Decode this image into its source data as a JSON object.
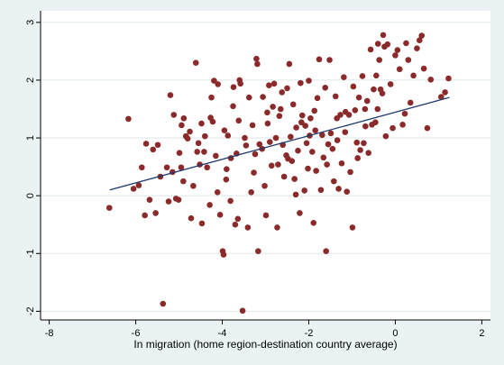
{
  "chart_data": {
    "type": "scatter",
    "title": "",
    "xlabel": "In migration (home region-destination country average)",
    "ylabel": "",
    "xlim": [
      -8.2,
      2.2
    ],
    "ylim": [
      -2.15,
      3.2
    ],
    "xticks": [
      -8,
      -6,
      -4,
      -2,
      0,
      2
    ],
    "yticks": [
      -2,
      -1,
      0,
      1,
      2,
      3
    ],
    "xtick_labels": [
      "-8",
      "-6",
      "-4",
      "-2",
      "0",
      "2"
    ],
    "ytick_labels": [
      "-2",
      "-1",
      "0",
      "1",
      "2",
      "3"
    ],
    "grid": "horizontal",
    "colors": {
      "marker": "#8b2a2a",
      "fit_line": "#1f3a6e",
      "background": "#eaf2f3",
      "plot_bg": "#ffffff"
    },
    "fit_line": {
      "x": [
        -6.6,
        1.25
      ],
      "y": [
        0.1,
        1.7
      ]
    },
    "points": [
      {
        "x": -6.61,
        "y": -0.21
      },
      {
        "x": -6.17,
        "y": 1.33
      },
      {
        "x": -6.05,
        "y": 0.12
      },
      {
        "x": -5.93,
        "y": 0.18
      },
      {
        "x": -5.86,
        "y": 0.49
      },
      {
        "x": -5.76,
        "y": 0.9
      },
      {
        "x": -5.79,
        "y": -0.34
      },
      {
        "x": -5.68,
        "y": -0.07
      },
      {
        "x": -5.54,
        "y": -0.3
      },
      {
        "x": -5.49,
        "y": 0.88
      },
      {
        "x": -5.43,
        "y": 0.33
      },
      {
        "x": -5.37,
        "y": -1.87
      },
      {
        "x": -5.28,
        "y": 0.49
      },
      {
        "x": -5.2,
        "y": 1.74
      },
      {
        "x": -5.24,
        "y": -0.1
      },
      {
        "x": -5.15,
        "y": 0.41
      },
      {
        "x": -5.12,
        "y": 1.4
      },
      {
        "x": -5.07,
        "y": -0.05
      },
      {
        "x": -5.01,
        "y": -0.07
      },
      {
        "x": -4.99,
        "y": 0.74
      },
      {
        "x": -4.94,
        "y": 1.22
      },
      {
        "x": -4.95,
        "y": 0.49
      },
      {
        "x": -4.89,
        "y": 1.34
      },
      {
        "x": -4.84,
        "y": 1.03
      },
      {
        "x": -4.8,
        "y": 0.99
      },
      {
        "x": -4.72,
        "y": -0.39
      },
      {
        "x": -4.75,
        "y": 1.11
      },
      {
        "x": -4.67,
        "y": 0.17
      },
      {
        "x": -4.61,
        "y": 2.3
      },
      {
        "x": -4.55,
        "y": 0.91
      },
      {
        "x": -4.52,
        "y": 0.54
      },
      {
        "x": -4.48,
        "y": 1.25
      },
      {
        "x": -4.47,
        "y": -0.48
      },
      {
        "x": -4.42,
        "y": 0.76
      },
      {
        "x": -4.4,
        "y": 1.03
      },
      {
        "x": -4.35,
        "y": 0.49
      },
      {
        "x": -4.29,
        "y": -0.16
      },
      {
        "x": -4.27,
        "y": 1.35
      },
      {
        "x": -4.22,
        "y": 1.28
      },
      {
        "x": -4.19,
        "y": 1.99
      },
      {
        "x": -4.15,
        "y": 0.69
      },
      {
        "x": -4.1,
        "y": 1.93
      },
      {
        "x": -4.11,
        "y": 0.06
      },
      {
        "x": -4.05,
        "y": -0.33
      },
      {
        "x": -3.99,
        "y": -0.96
      },
      {
        "x": -3.97,
        "y": -1.02
      },
      {
        "x": -3.95,
        "y": 1.13
      },
      {
        "x": -3.91,
        "y": 0.28
      },
      {
        "x": -3.87,
        "y": 1.04
      },
      {
        "x": -3.81,
        "y": -0.09
      },
      {
        "x": -3.8,
        "y": 0.65
      },
      {
        "x": -3.74,
        "y": 1.88
      },
      {
        "x": -3.7,
        "y": -0.5
      },
      {
        "x": -3.67,
        "y": 0.73
      },
      {
        "x": -3.64,
        "y": -0.4
      },
      {
        "x": -3.62,
        "y": 1.3
      },
      {
        "x": -3.58,
        "y": 1.94
      },
      {
        "x": -3.6,
        "y": 2.0
      },
      {
        "x": -3.53,
        "y": -1.99
      },
      {
        "x": -3.48,
        "y": 1.0
      },
      {
        "x": -3.45,
        "y": 0.87
      },
      {
        "x": -3.41,
        "y": -0.55
      },
      {
        "x": -3.38,
        "y": 1.7
      },
      {
        "x": -3.33,
        "y": 0.06
      },
      {
        "x": -3.27,
        "y": 0.4
      },
      {
        "x": -3.24,
        "y": 0.72
      },
      {
        "x": -3.21,
        "y": 2.37
      },
      {
        "x": -3.19,
        "y": 2.28
      },
      {
        "x": -3.17,
        "y": -0.96
      },
      {
        "x": -3.14,
        "y": 0.89
      },
      {
        "x": -3.08,
        "y": 0.81
      },
      {
        "x": -3.06,
        "y": 1.71
      },
      {
        "x": -3.02,
        "y": 0.17
      },
      {
        "x": -2.99,
        "y": -0.34
      },
      {
        "x": -2.96,
        "y": 1.44
      },
      {
        "x": -2.92,
        "y": 1.91
      },
      {
        "x": -2.9,
        "y": 0.93
      },
      {
        "x": -2.86,
        "y": 0.52
      },
      {
        "x": -2.83,
        "y": 1.54
      },
      {
        "x": -2.8,
        "y": 1.94
      },
      {
        "x": -2.76,
        "y": 1.0
      },
      {
        "x": -2.73,
        "y": -0.55
      },
      {
        "x": -2.71,
        "y": 0.54
      },
      {
        "x": -2.68,
        "y": 1.38
      },
      {
        "x": -2.62,
        "y": 1.79
      },
      {
        "x": -2.6,
        "y": 0.88
      },
      {
        "x": -2.57,
        "y": 0.33
      },
      {
        "x": -2.52,
        "y": 0.7
      },
      {
        "x": -2.5,
        "y": 1.86
      },
      {
        "x": -2.45,
        "y": 2.28
      },
      {
        "x": -2.42,
        "y": 1.02
      },
      {
        "x": -2.39,
        "y": 0.6
      },
      {
        "x": -2.36,
        "y": 1.58
      },
      {
        "x": -2.33,
        "y": 0.29
      },
      {
        "x": -2.29,
        "y": 1.18
      },
      {
        "x": -2.25,
        "y": 0.78
      },
      {
        "x": -2.21,
        "y": -0.3
      },
      {
        "x": -2.19,
        "y": 1.95
      },
      {
        "x": -2.15,
        "y": 1.39
      },
      {
        "x": -2.1,
        "y": 0.09
      },
      {
        "x": -2.08,
        "y": 1.21
      },
      {
        "x": -2.05,
        "y": 0.91
      },
      {
        "x": -2.02,
        "y": 0.47
      },
      {
        "x": -1.98,
        "y": 1.04
      },
      {
        "x": -1.96,
        "y": 1.34
      },
      {
        "x": -1.92,
        "y": 0.76
      },
      {
        "x": -1.89,
        "y": -0.47
      },
      {
        "x": -1.87,
        "y": 1.47
      },
      {
        "x": -1.83,
        "y": 0.43
      },
      {
        "x": -1.8,
        "y": 1.69
      },
      {
        "x": -1.76,
        "y": 2.36
      },
      {
        "x": -1.72,
        "y": 0.1
      },
      {
        "x": -1.69,
        "y": 1.05
      },
      {
        "x": -1.66,
        "y": 0.66
      },
      {
        "x": -1.62,
        "y": 1.87
      },
      {
        "x": -1.6,
        "y": -0.96
      },
      {
        "x": -1.55,
        "y": 0.89
      },
      {
        "x": -1.52,
        "y": 2.35
      },
      {
        "x": -1.49,
        "y": 1.08
      },
      {
        "x": -1.45,
        "y": 0.81
      },
      {
        "x": -1.42,
        "y": 0.25
      },
      {
        "x": -1.38,
        "y": 1.72
      },
      {
        "x": -1.34,
        "y": 0.96
      },
      {
        "x": -1.31,
        "y": 0.12
      },
      {
        "x": -1.27,
        "y": 1.4
      },
      {
        "x": -1.24,
        "y": 0.56
      },
      {
        "x": -1.19,
        "y": 2.05
      },
      {
        "x": -1.16,
        "y": 1.1
      },
      {
        "x": -1.12,
        "y": 0.07
      },
      {
        "x": -1.07,
        "y": 1.4
      },
      {
        "x": -1.04,
        "y": 0.41
      },
      {
        "x": -0.99,
        "y": -0.55
      },
      {
        "x": -0.97,
        "y": 1.89
      },
      {
        "x": -0.93,
        "y": 1.48
      },
      {
        "x": -0.89,
        "y": 0.92
      },
      {
        "x": -0.84,
        "y": 1.7
      },
      {
        "x": -0.81,
        "y": 0.79
      },
      {
        "x": -0.76,
        "y": 2.07
      },
      {
        "x": -0.73,
        "y": 0.91
      },
      {
        "x": -0.69,
        "y": 1.2
      },
      {
        "x": -0.65,
        "y": 1.64
      },
      {
        "x": -0.62,
        "y": 0.74
      },
      {
        "x": -0.57,
        "y": 2.53
      },
      {
        "x": -0.54,
        "y": 1.23
      },
      {
        "x": -0.5,
        "y": 1.84
      },
      {
        "x": -0.46,
        "y": 1.27
      },
      {
        "x": -0.44,
        "y": 2.08
      },
      {
        "x": -0.4,
        "y": 2.63
      },
      {
        "x": -0.37,
        "y": 2.35
      },
      {
        "x": -0.34,
        "y": 1.84
      },
      {
        "x": -0.3,
        "y": 1.77
      },
      {
        "x": -0.28,
        "y": 2.78
      },
      {
        "x": -0.25,
        "y": 2.58
      },
      {
        "x": -0.22,
        "y": 1.03
      },
      {
        "x": -0.18,
        "y": 2.62
      },
      {
        "x": -0.11,
        "y": 1.93
      },
      {
        "x": -0.06,
        "y": 1.17
      },
      {
        "x": 0.0,
        "y": 2.43
      },
      {
        "x": 0.05,
        "y": 2.52
      },
      {
        "x": 0.1,
        "y": 2.19
      },
      {
        "x": 0.17,
        "y": 1.23
      },
      {
        "x": 0.22,
        "y": 1.42
      },
      {
        "x": 0.25,
        "y": 2.64
      },
      {
        "x": 0.3,
        "y": 2.35
      },
      {
        "x": 0.35,
        "y": 1.61
      },
      {
        "x": 0.42,
        "y": 2.08
      },
      {
        "x": 0.5,
        "y": 2.55
      },
      {
        "x": 0.56,
        "y": 2.69
      },
      {
        "x": 0.61,
        "y": 2.77
      },
      {
        "x": 0.66,
        "y": 2.2
      },
      {
        "x": 0.74,
        "y": 1.17
      },
      {
        "x": 0.82,
        "y": 2.01
      },
      {
        "x": 1.06,
        "y": 1.71
      },
      {
        "x": 1.15,
        "y": 1.79
      },
      {
        "x": 1.23,
        "y": 2.03
      },
      {
        "x": -4.58,
        "y": 0.76
      },
      {
        "x": -4.25,
        "y": 1.7
      },
      {
        "x": -3.9,
        "y": 0.46
      },
      {
        "x": -3.3,
        "y": 1.22
      },
      {
        "x": -2.95,
        "y": 1.25
      },
      {
        "x": -2.48,
        "y": 0.64
      },
      {
        "x": -2.3,
        "y": 0.02
      },
      {
        "x": -2.17,
        "y": 1.27
      },
      {
        "x": -1.85,
        "y": 1.13
      },
      {
        "x": -1.58,
        "y": 0.54
      },
      {
        "x": -1.35,
        "y": 1.34
      },
      {
        "x": -0.87,
        "y": 0.65
      },
      {
        "x": -0.41,
        "y": 1.5
      },
      {
        "x": -5.6,
        "y": 0.8
      },
      {
        "x": -4.9,
        "y": 0.25
      },
      {
        "x": -3.75,
        "y": 1.55
      },
      {
        "x": -2.65,
        "y": 1.5
      },
      {
        "x": -2.0,
        "y": 1.99
      },
      {
        "x": -1.15,
        "y": 1.45
      },
      {
        "x": -0.7,
        "y": 1.5
      }
    ]
  }
}
